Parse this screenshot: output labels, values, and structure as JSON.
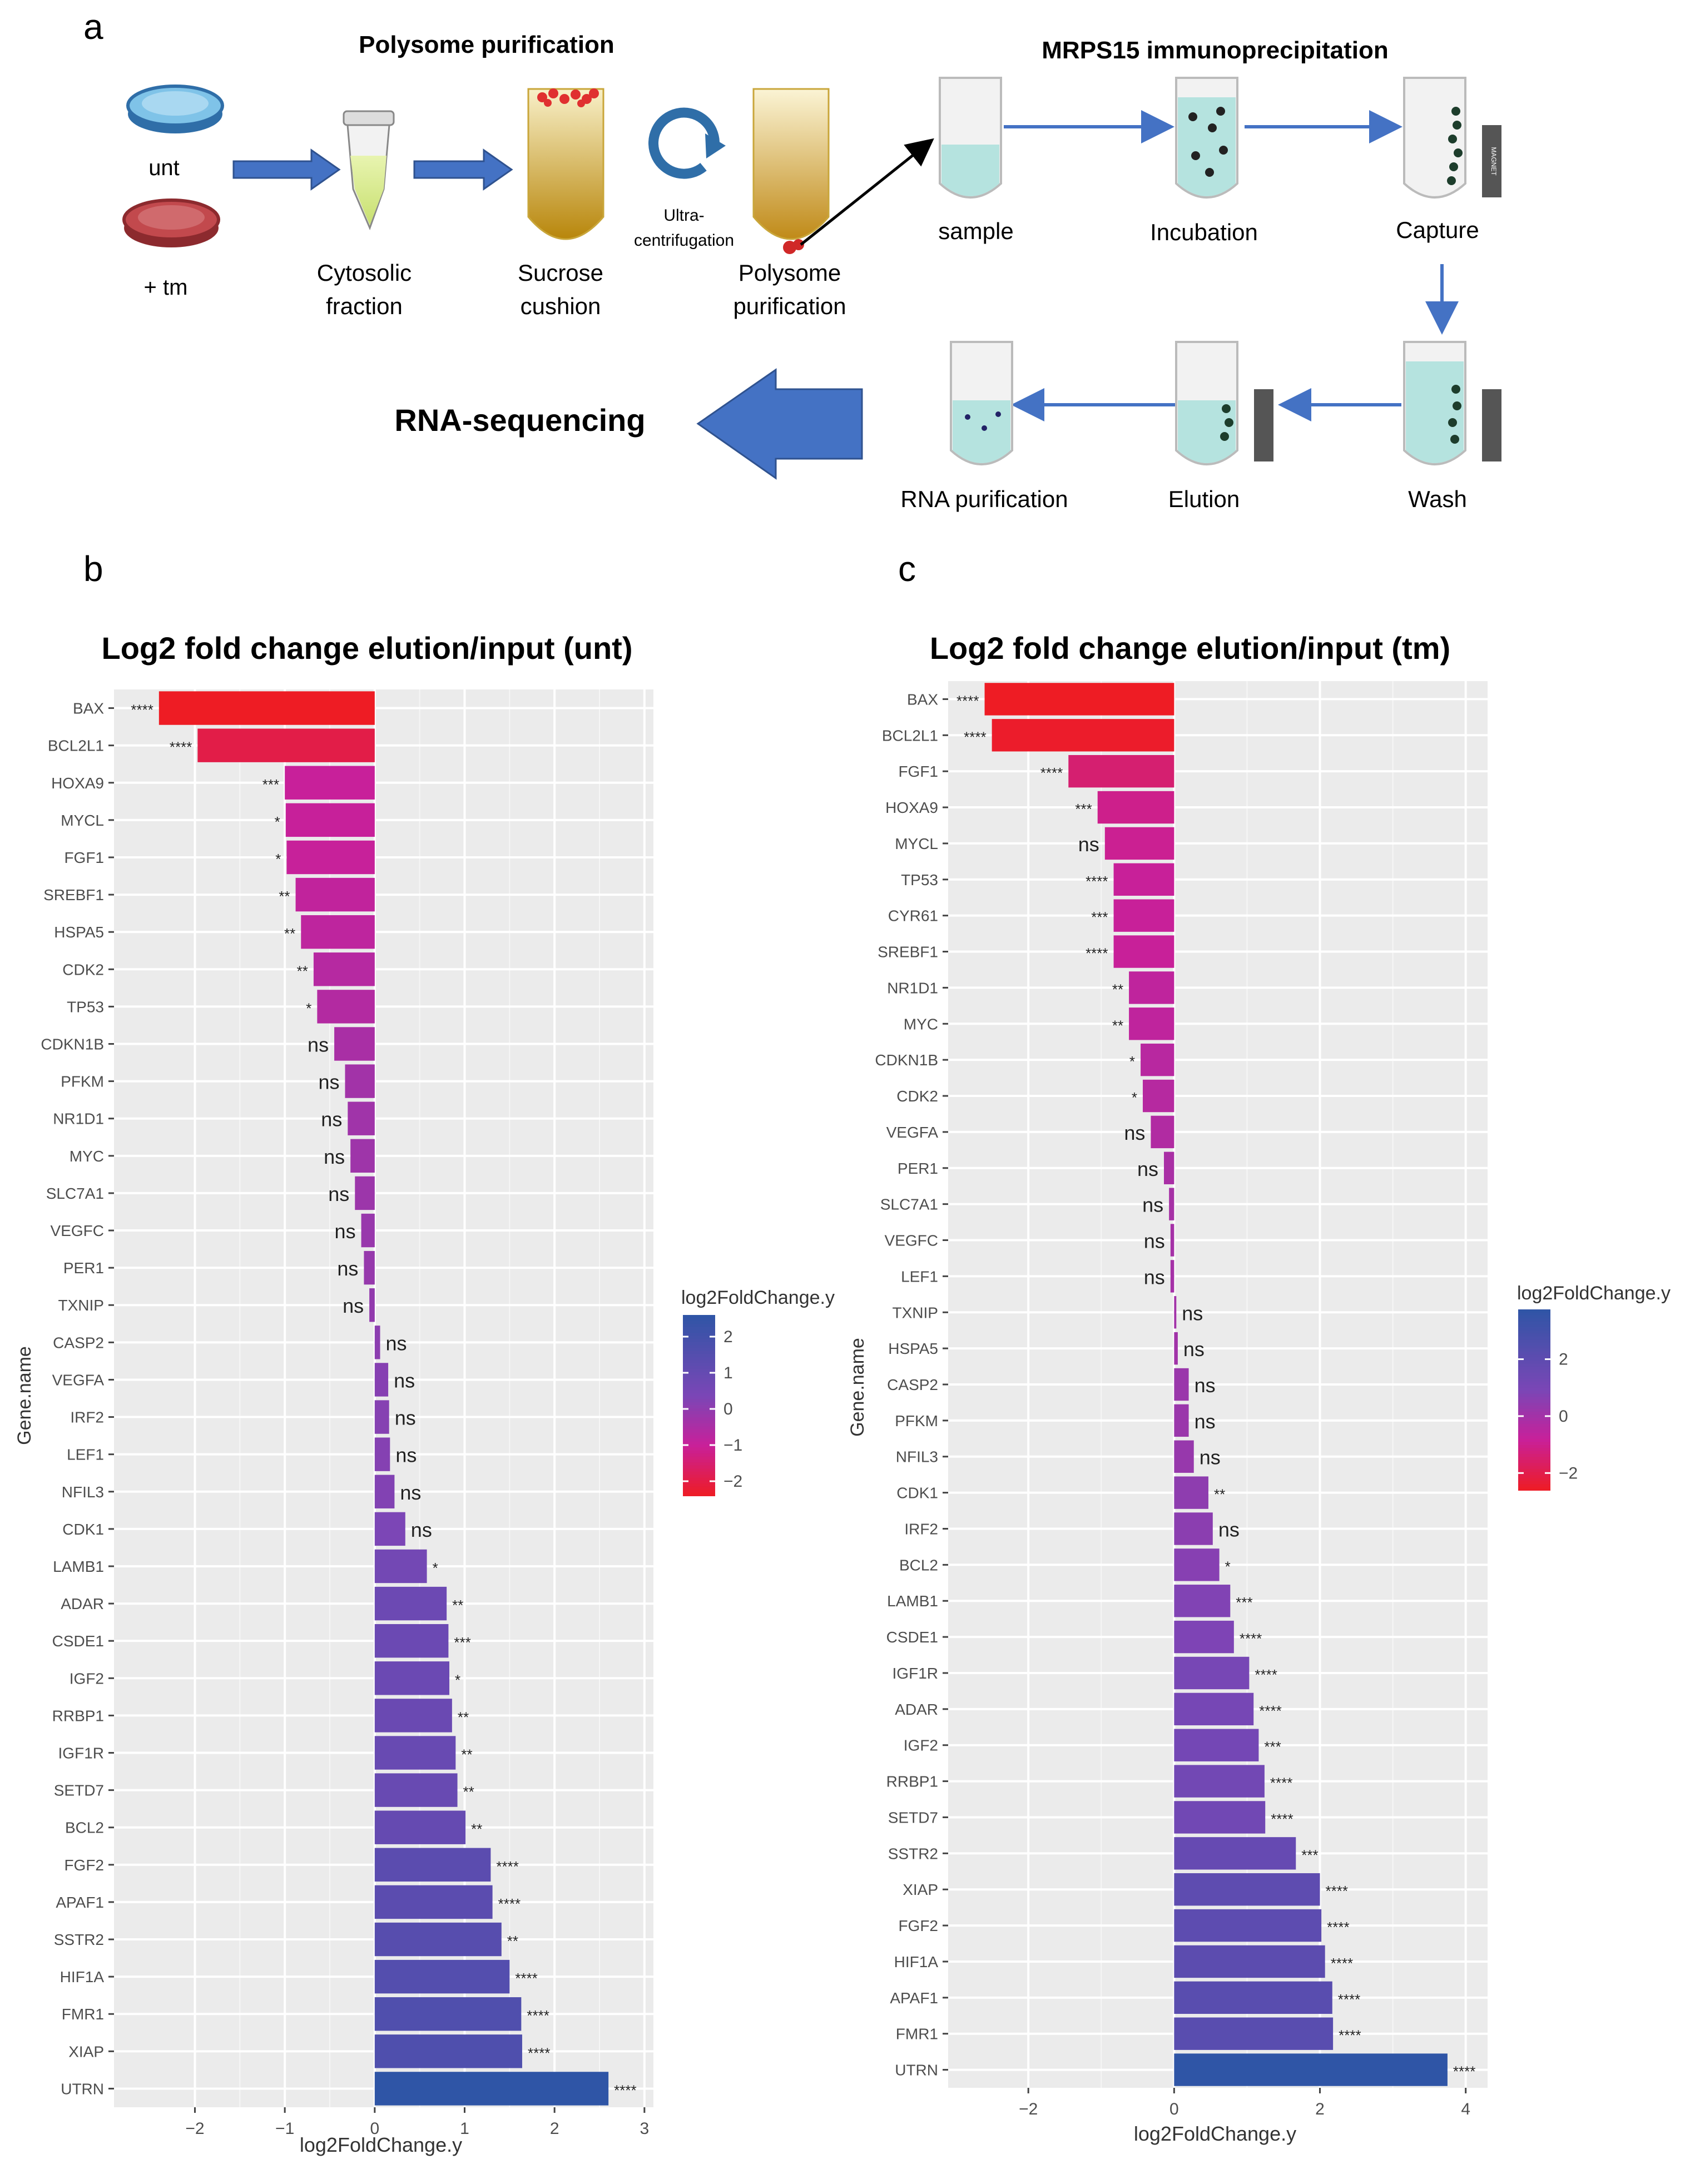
{
  "panel_a": {
    "label": "a",
    "polysome_title": "Polysome purification",
    "ip_title": "MRPS15 immunoprecipitation",
    "dish_unt": "unt",
    "dish_tm": "+ tm",
    "cytosolic": [
      "Cytosolic",
      "fraction"
    ],
    "sucrose": [
      "Sucrose",
      "cushion"
    ],
    "ultra": [
      "Ultra-",
      "centrifugation"
    ],
    "polysome": [
      "Polysome",
      "purification"
    ],
    "sample": "sample",
    "incubation": "Incubation",
    "capture": "Capture",
    "wash": "Wash",
    "elution": "Elution",
    "rna_purification": "RNA purification",
    "rna_seq": "RNA-sequencing",
    "magnet": "MAGNET",
    "colors": {
      "arrow": "#4472c4",
      "dish_unt": "#7fc3e8",
      "dish_tm": "#c2494d",
      "liquid": "#b5e3df"
    }
  },
  "chart_data": [
    {
      "type": "bar",
      "orientation": "horizontal",
      "panel_label": "b",
      "title": "Log2 fold change elution/input (unt)",
      "xlabel": "log2FoldChange.y",
      "ylabel": "Gene.name",
      "xlim": [
        -2.9,
        3.1
      ],
      "xticks": [
        -2,
        -1,
        0,
        1,
        2,
        3
      ],
      "xtick_labels": [
        "−2",
        "−1",
        "0",
        "1",
        "2",
        "3"
      ],
      "legend_title": "log2FoldChange.y",
      "legend_ticks": [
        2,
        1,
        0,
        -1,
        -2
      ],
      "legend_tick_labels": [
        "2",
        "1",
        "0",
        "−1",
        "−2"
      ],
      "color_range": [
        -2.4,
        2.6
      ],
      "categories": [
        "BAX",
        "BCL2L1",
        "HOXA9",
        "MYCL",
        "FGF1",
        "SREBF1",
        "HSPA5",
        "CDK2",
        "TP53",
        "CDKN1B",
        "PFKM",
        "NR1D1",
        "MYC",
        "SLC7A1",
        "VEGFC",
        "PER1",
        "TXNIP",
        "CASP2",
        "VEGFA",
        "IRF2",
        "LEF1",
        "NFIL3",
        "CDK1",
        "LAMB1",
        "ADAR",
        "CSDE1",
        "IGF2",
        "RRBP1",
        "IGF1R",
        "SETD7",
        "BCL2",
        "FGF2",
        "APAF1",
        "SSTR2",
        "HIF1A",
        "FMR1",
        "XIAP",
        "UTRN"
      ],
      "values": [
        -2.4,
        -1.97,
        -1.0,
        -0.99,
        -0.98,
        -0.88,
        -0.82,
        -0.68,
        -0.64,
        -0.45,
        -0.33,
        -0.3,
        -0.27,
        -0.22,
        -0.15,
        -0.12,
        -0.06,
        0.06,
        0.15,
        0.16,
        0.17,
        0.22,
        0.34,
        0.58,
        0.8,
        0.82,
        0.83,
        0.86,
        0.9,
        0.92,
        1.01,
        1.29,
        1.31,
        1.41,
        1.5,
        1.63,
        1.64,
        2.6
      ],
      "significance": [
        "****",
        "****",
        "***",
        "*",
        "*",
        "**",
        "**",
        "**",
        "*",
        "ns",
        "ns",
        "ns",
        "ns",
        "ns",
        "ns",
        "ns",
        "ns",
        "ns",
        "ns",
        "ns",
        "ns",
        "ns",
        "ns",
        "*",
        "**",
        "***",
        "*",
        "**",
        "**",
        "**",
        "**",
        "****",
        "****",
        "**",
        "****",
        "****",
        "****",
        "****"
      ]
    },
    {
      "type": "bar",
      "orientation": "horizontal",
      "panel_label": "c",
      "title": "Log2 fold change elution/input (tm)",
      "xlabel": "log2FoldChange.y",
      "ylabel": "Gene.name",
      "xlim": [
        -3.1,
        4.3
      ],
      "xticks": [
        -2,
        0,
        2,
        4
      ],
      "xtick_labels": [
        "−2",
        "0",
        "2",
        "4"
      ],
      "legend_title": "log2FoldChange.y",
      "legend_ticks": [
        2,
        0,
        -2
      ],
      "legend_tick_labels": [
        "2",
        "0",
        "−2"
      ],
      "color_range": [
        -2.6,
        3.75
      ],
      "categories": [
        "BAX",
        "BCL2L1",
        "FGF1",
        "HOXA9",
        "MYCL",
        "TP53",
        "CYR61",
        "SREBF1",
        "NR1D1",
        "MYC",
        "CDKN1B",
        "CDK2",
        "VEGFA",
        "PER1",
        "SLC7A1",
        "VEGFC",
        "LEF1",
        "TXNIP",
        "HSPA5",
        "CASP2",
        "PFKM",
        "NFIL3",
        "CDK1",
        "IRF2",
        "BCL2",
        "LAMB1",
        "CSDE1",
        "IGF1R",
        "ADAR",
        "IGF2",
        "RRBP1",
        "SETD7",
        "SSTR2",
        "XIAP",
        "FGF2",
        "HIF1A",
        "APAF1",
        "FMR1",
        "UTRN"
      ],
      "values": [
        -2.6,
        -2.5,
        -1.45,
        -1.05,
        -0.95,
        -0.83,
        -0.83,
        -0.83,
        -0.62,
        -0.62,
        -0.46,
        -0.43,
        -0.32,
        -0.14,
        -0.07,
        -0.05,
        -0.05,
        0.03,
        0.05,
        0.2,
        0.2,
        0.27,
        0.47,
        0.53,
        0.62,
        0.77,
        0.82,
        1.03,
        1.09,
        1.16,
        1.24,
        1.25,
        1.67,
        2.0,
        2.02,
        2.07,
        2.17,
        2.18,
        3.75
      ],
      "significance": [
        "****",
        "****",
        "****",
        "***",
        "ns",
        "****",
        "***",
        "****",
        "**",
        "**",
        "*",
        "*",
        "ns",
        "ns",
        "ns",
        "ns",
        "ns",
        "ns",
        "ns",
        "ns",
        "ns",
        "ns",
        "**",
        "ns",
        "*",
        "***",
        "****",
        "****",
        "****",
        "***",
        "****",
        "****",
        "***",
        "****",
        "****",
        "****",
        "****",
        "****",
        "****"
      ]
    }
  ]
}
